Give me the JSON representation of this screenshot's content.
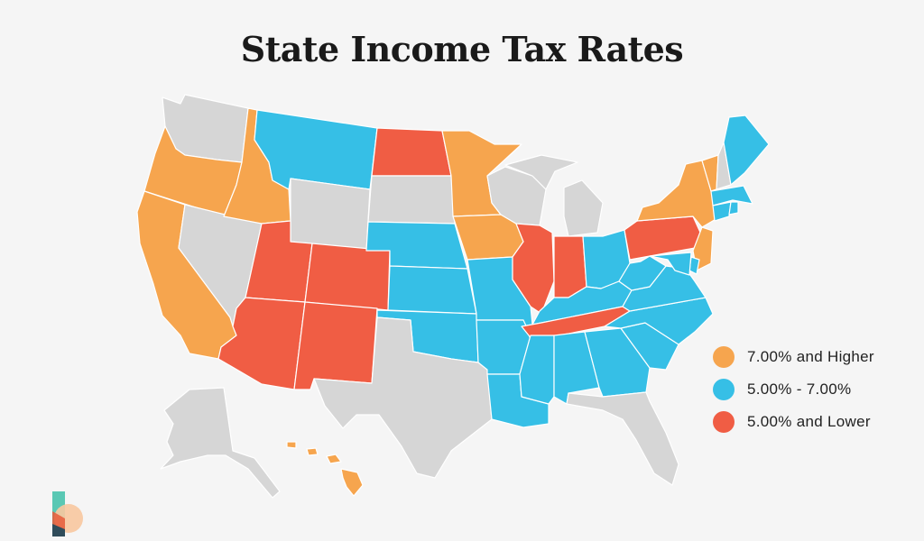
{
  "title": "State Income Tax Rates",
  "colors": {
    "high": "#f6a54e",
    "mid": "#36bfe6",
    "low": "#f05d44",
    "none": "#d6d6d6"
  },
  "legend": [
    {
      "key": "high",
      "label": "7.00% and Higher"
    },
    {
      "key": "mid",
      "label": "5.00% - 7.00%"
    },
    {
      "key": "low",
      "label": "5.00% and Lower"
    }
  ],
  "states": {
    "WA": "none",
    "OR": "high",
    "CA": "high",
    "ID": "high",
    "NV": "none",
    "MT": "mid",
    "WY": "none",
    "UT": "low",
    "AZ": "low",
    "CO": "low",
    "NM": "low",
    "ND": "low",
    "SD": "none",
    "NE": "mid",
    "KS": "mid",
    "OK": "mid",
    "TX": "none",
    "MN": "high",
    "IA": "high",
    "MO": "mid",
    "AR": "mid",
    "LA": "mid",
    "WI": "none",
    "IL": "low",
    "MI": "none",
    "IN": "low",
    "OH": "mid",
    "KY": "mid",
    "TN": "low",
    "MS": "mid",
    "AL": "mid",
    "GA": "mid",
    "FL": "none",
    "SC": "mid",
    "NC": "mid",
    "VA": "mid",
    "WV": "mid",
    "PA": "low",
    "NY": "high",
    "VT": "high",
    "NH": "none",
    "ME": "mid",
    "MA": "mid",
    "CT": "mid",
    "RI": "mid",
    "NJ": "high",
    "DE": "mid",
    "MD": "mid",
    "AK": "none",
    "HI": "high"
  }
}
